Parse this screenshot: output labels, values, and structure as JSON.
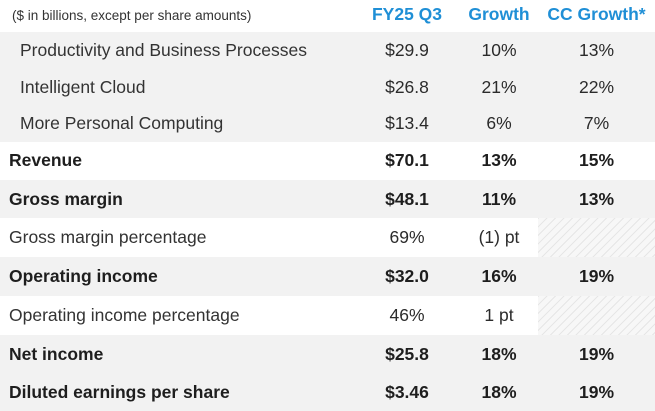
{
  "header": {
    "note": "($ in billions, except per share amounts)",
    "col1": "FY25 Q3",
    "col2": "Growth",
    "col3": "CC Growth*"
  },
  "rows": [
    {
      "label": "Productivity and Business Processes",
      "v1": "$29.9",
      "v2": "10%",
      "v3": "13%"
    },
    {
      "label": "Intelligent Cloud",
      "v1": "$26.8",
      "v2": "21%",
      "v3": "22%"
    },
    {
      "label": "More Personal Computing",
      "v1": "$13.4",
      "v2": "6%",
      "v3": "7%"
    },
    {
      "label": "Revenue",
      "v1": "$70.1",
      "v2": "13%",
      "v3": "15%"
    },
    {
      "label": "Gross margin",
      "v1": "$48.1",
      "v2": "11%",
      "v3": "13%"
    },
    {
      "label": "Gross margin percentage",
      "v1": "69%",
      "v2": "(1) pt",
      "v3": ""
    },
    {
      "label": "Operating income",
      "v1": "$32.0",
      "v2": "16%",
      "v3": "19%"
    },
    {
      "label": "Operating income percentage",
      "v1": "46%",
      "v2": "1 pt",
      "v3": ""
    },
    {
      "label": "Net income",
      "v1": "$25.8",
      "v2": "18%",
      "v3": "19%"
    },
    {
      "label": "Diluted earnings per share",
      "v1": "$3.46",
      "v2": "18%",
      "v3": "19%"
    }
  ],
  "colors": {
    "header_accent": "#1f8fd6",
    "row_shade": "#f2f2f2"
  }
}
